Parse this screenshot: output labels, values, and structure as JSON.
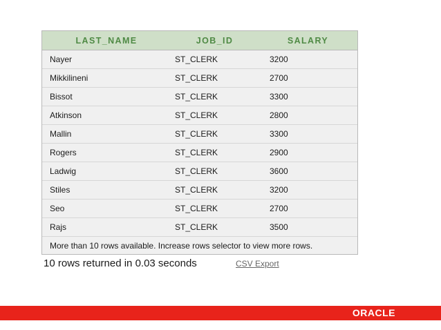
{
  "table": {
    "headers": [
      "LAST_NAME",
      "JOB_ID",
      "SALARY"
    ],
    "rows": [
      [
        "Nayer",
        "ST_CLERK",
        "3200"
      ],
      [
        "Mikkilineni",
        "ST_CLERK",
        "2700"
      ],
      [
        "Bissot",
        "ST_CLERK",
        "3300"
      ],
      [
        "Atkinson",
        "ST_CLERK",
        "2800"
      ],
      [
        "Mallin",
        "ST_CLERK",
        "3300"
      ],
      [
        "Rogers",
        "ST_CLERK",
        "2900"
      ],
      [
        "Ladwig",
        "ST_CLERK",
        "3600"
      ],
      [
        "Stiles",
        "ST_CLERK",
        "3200"
      ],
      [
        "Seo",
        "ST_CLERK",
        "2700"
      ],
      [
        "Rajs",
        "ST_CLERK",
        "3500"
      ]
    ],
    "footer_note": "More than 10 rows available. Increase rows selector to view more rows."
  },
  "status": {
    "rows_returned": "10 rows returned in 0.03 seconds",
    "csv_export": "CSV Export"
  },
  "brand": {
    "logo_text": "ORACLE",
    "bar_color": "#e8231b"
  }
}
